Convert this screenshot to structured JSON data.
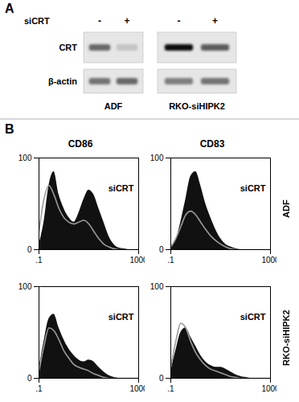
{
  "panel_a": {
    "label": "A",
    "condition_label": "siCRT",
    "lanes": [
      "-",
      "+",
      "-",
      "+"
    ],
    "groups": [
      "ADF",
      "RKO-siHIPK2"
    ],
    "rows": [
      {
        "name": "CRT",
        "intensity": [
          0.55,
          0.15,
          0.95,
          0.6
        ]
      },
      {
        "name": "β-actin",
        "intensity": [
          0.5,
          0.55,
          0.45,
          0.5
        ]
      }
    ]
  },
  "panel_b": {
    "label": "B",
    "columns": [
      "CD86",
      "CD83"
    ],
    "rows": [
      "ADF",
      "RKO-siHIPK2"
    ]
  },
  "chart_data": [
    {
      "type": "area",
      "log": "x",
      "annotation": "siCRT",
      "xlim": [
        0.1,
        1000
      ],
      "ylim": [
        0,
        100
      ],
      "xticks": [
        {
          "value": 0.1,
          "label": ".1"
        },
        1000
      ],
      "yticks": [
        0,
        100
      ],
      "x": [
        0.1,
        0.158,
        0.251,
        0.398,
        0.631,
        1,
        1.58,
        2.51,
        3.98,
        6.31,
        10,
        15.8,
        25.1,
        39.8,
        63.1,
        100,
        158,
        251,
        398,
        631,
        1000
      ],
      "series": [
        {
          "type": "area",
          "color": "#111111",
          "values": [
            5,
            30,
            70,
            85,
            60,
            45,
            35,
            30,
            40,
            55,
            65,
            60,
            45,
            30,
            15,
            6,
            2,
            1,
            0,
            0,
            0
          ]
        },
        {
          "type": "line",
          "color": "#9a9a9a",
          "values": [
            20,
            55,
            70,
            60,
            45,
            35,
            30,
            28,
            30,
            32,
            28,
            20,
            12,
            6,
            3,
            1,
            0,
            0,
            0,
            0,
            0
          ]
        }
      ]
    },
    {
      "type": "area",
      "log": "x",
      "annotation": "siCRT",
      "xlim": [
        0.1,
        1000
      ],
      "ylim": [
        0,
        100
      ],
      "xticks": [
        {
          "value": 0.1,
          "label": ".1"
        },
        1000
      ],
      "yticks": [
        0,
        100
      ],
      "x": [
        0.1,
        0.158,
        0.251,
        0.398,
        0.631,
        1,
        1.58,
        2.51,
        3.98,
        6.31,
        10,
        15.8,
        25.1,
        39.8,
        63.1,
        100,
        158,
        251,
        398,
        631,
        1000
      ],
      "series": [
        {
          "type": "area",
          "color": "#111111",
          "values": [
            2,
            10,
            30,
            55,
            80,
            85,
            70,
            50,
            35,
            22,
            12,
            6,
            3,
            1,
            0,
            0,
            0,
            0,
            0,
            0,
            0
          ]
        },
        {
          "type": "line",
          "color": "#9a9a9a",
          "values": [
            3,
            12,
            25,
            38,
            42,
            38,
            30,
            22,
            15,
            10,
            6,
            3,
            1,
            0,
            0,
            0,
            0,
            0,
            0,
            0,
            0
          ]
        }
      ]
    },
    {
      "type": "area",
      "log": "x",
      "annotation": "siCRT",
      "xlim": [
        0.1,
        1000
      ],
      "ylim": [
        0,
        100
      ],
      "xticks": [
        {
          "value": 0.1,
          "label": ".1"
        },
        1000
      ],
      "yticks": [
        0,
        100
      ],
      "x": [
        0.1,
        0.158,
        0.251,
        0.398,
        0.631,
        1,
        1.58,
        2.51,
        3.98,
        6.31,
        10,
        15.8,
        25.1,
        39.8,
        63.1,
        100,
        158,
        251,
        398,
        631,
        1000
      ],
      "series": [
        {
          "type": "area",
          "color": "#111111",
          "values": [
            10,
            40,
            65,
            70,
            55,
            42,
            32,
            25,
            20,
            18,
            20,
            18,
            12,
            7,
            3,
            1,
            0,
            0,
            0,
            0,
            0
          ]
        },
        {
          "type": "line",
          "color": "#9a9a9a",
          "values": [
            8,
            35,
            55,
            52,
            42,
            30,
            22,
            15,
            12,
            10,
            8,
            5,
            3,
            1,
            0,
            0,
            0,
            0,
            0,
            0,
            0
          ]
        }
      ]
    },
    {
      "type": "area",
      "log": "x",
      "annotation": "siCRT",
      "xlim": [
        0.1,
        1000
      ],
      "ylim": [
        0,
        100
      ],
      "xticks": [
        {
          "value": 0.1,
          "label": ".1"
        },
        1000
      ],
      "yticks": [
        0,
        100
      ],
      "x": [
        0.1,
        0.158,
        0.251,
        0.398,
        0.631,
        1,
        1.58,
        2.51,
        3.98,
        6.31,
        10,
        15.8,
        25.1,
        39.8,
        63.1,
        100,
        158,
        251,
        398,
        631,
        1000
      ],
      "series": [
        {
          "type": "area",
          "color": "#111111",
          "values": [
            8,
            30,
            50,
            55,
            45,
            35,
            25,
            18,
            14,
            12,
            12,
            10,
            7,
            4,
            2,
            1,
            0,
            0,
            0,
            0,
            0
          ]
        },
        {
          "type": "line",
          "color": "#9a9a9a",
          "values": [
            12,
            40,
            60,
            55,
            40,
            28,
            20,
            14,
            10,
            8,
            6,
            4,
            2,
            1,
            0,
            0,
            0,
            0,
            0,
            0,
            0
          ]
        }
      ]
    }
  ]
}
